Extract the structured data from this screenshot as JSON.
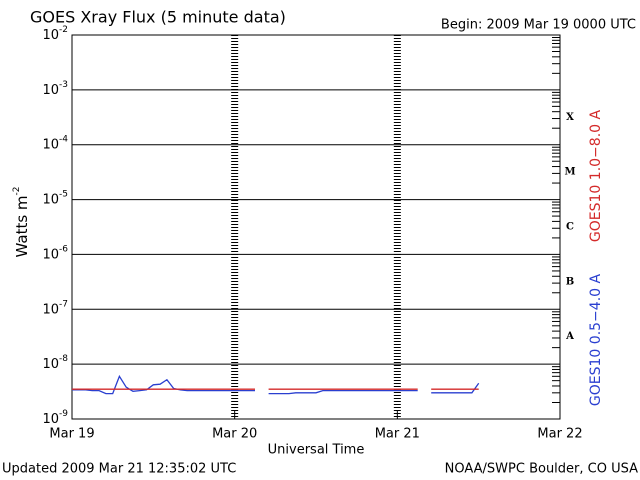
{
  "chart_data": {
    "type": "line",
    "title": "GOES Xray Flux (5 minute data)",
    "begin_label": "Begin:  2009 Mar 19 0000 UTC",
    "x_label": "Universal Time",
    "y_label": [
      "Watts m",
      "-2"
    ],
    "updated": "Updated 2009 Mar 21 12:35:02 UTC",
    "source": "NOAA/SWPC Boulder, CO USA",
    "yscale": "log",
    "grid": true,
    "xlim": [
      0,
      72
    ],
    "xticks": [
      {
        "value": 0,
        "label": "Mar 19"
      },
      {
        "value": 24,
        "label": "Mar 20"
      },
      {
        "value": 48,
        "label": "Mar 21"
      },
      {
        "value": 72,
        "label": "Mar 22"
      }
    ],
    "ylim": [
      1e-09,
      0.01
    ],
    "yticks": [
      {
        "value": 1e-09,
        "label": [
          "10",
          "-9"
        ]
      },
      {
        "value": 1e-08,
        "label": [
          "10",
          "-8"
        ]
      },
      {
        "value": 1e-07,
        "label": [
          "10",
          "-7"
        ]
      },
      {
        "value": 1e-06,
        "label": [
          "10",
          "-6"
        ]
      },
      {
        "value": 1e-05,
        "label": [
          "10",
          "-5"
        ]
      },
      {
        "value": 0.0001,
        "label": [
          "10",
          "-4"
        ]
      },
      {
        "value": 0.001,
        "label": [
          "10",
          "-3"
        ]
      },
      {
        "value": 0.01,
        "label": [
          "10",
          "-2"
        ]
      }
    ],
    "flare_classes": [
      {
        "label": "A",
        "value": 1e-08
      },
      {
        "label": "B",
        "value": 1e-07
      },
      {
        "label": "C",
        "value": 1e-06
      },
      {
        "label": "M",
        "value": 1e-05
      },
      {
        "label": "X",
        "value": 0.0001
      }
    ],
    "x": [
      0,
      1,
      2,
      3,
      4,
      5,
      6,
      7,
      8,
      9,
      10,
      11,
      12,
      13,
      14,
      15,
      16,
      17,
      18,
      19,
      20,
      21,
      22,
      23,
      24,
      25,
      26,
      27,
      28,
      29,
      30,
      31,
      32,
      33,
      34,
      35,
      36,
      37,
      38,
      39,
      40,
      41,
      42,
      43,
      44,
      45,
      46,
      47,
      48,
      49,
      50,
      51,
      52,
      53,
      54,
      55,
      56,
      57,
      58,
      59,
      60
    ],
    "series": [
      {
        "name": "GOES10 0.5−4.0 A",
        "color": "#2a3fd0",
        "values": [
          3.4e-09,
          3.4e-09,
          3.4e-09,
          3.3e-09,
          3.3e-09,
          2.9e-09,
          2.9e-09,
          6e-09,
          3.8e-09,
          3.2e-09,
          3.3e-09,
          3.4e-09,
          4.2e-09,
          4.3e-09,
          5.2e-09,
          3.6e-09,
          3.4e-09,
          3.3e-09,
          3.3e-09,
          3.3e-09,
          3.3e-09,
          3.3e-09,
          3.3e-09,
          3.3e-09,
          3.3e-09,
          3.3e-09,
          3.3e-09,
          3.3e-09,
          null,
          2.9e-09,
          2.9e-09,
          2.9e-09,
          2.9e-09,
          3e-09,
          3e-09,
          3e-09,
          3e-09,
          3.3e-09,
          3.3e-09,
          3.3e-09,
          3.3e-09,
          3.3e-09,
          3.3e-09,
          3.3e-09,
          3.3e-09,
          3.3e-09,
          3.3e-09,
          3.3e-09,
          3.3e-09,
          3.3e-09,
          3.3e-09,
          3.3e-09,
          null,
          3e-09,
          3e-09,
          3e-09,
          3e-09,
          3e-09,
          3e-09,
          3e-09,
          4.5e-09
        ]
      },
      {
        "name": "GOES10 1.0−8.0 A",
        "color": "#d42a2a",
        "values": [
          3.5e-09,
          3.5e-09,
          3.5e-09,
          3.5e-09,
          3.5e-09,
          3.5e-09,
          3.5e-09,
          3.5e-09,
          3.5e-09,
          3.5e-09,
          3.5e-09,
          3.5e-09,
          3.5e-09,
          3.5e-09,
          3.5e-09,
          3.5e-09,
          3.5e-09,
          3.5e-09,
          3.5e-09,
          3.5e-09,
          3.5e-09,
          3.5e-09,
          3.5e-09,
          3.5e-09,
          3.5e-09,
          3.5e-09,
          3.5e-09,
          3.5e-09,
          null,
          3.5e-09,
          3.5e-09,
          3.5e-09,
          3.5e-09,
          3.5e-09,
          3.5e-09,
          3.5e-09,
          3.5e-09,
          3.5e-09,
          3.5e-09,
          3.5e-09,
          3.5e-09,
          3.5e-09,
          3.5e-09,
          3.5e-09,
          3.5e-09,
          3.5e-09,
          3.5e-09,
          3.5e-09,
          3.5e-09,
          3.5e-09,
          3.5e-09,
          3.5e-09,
          null,
          3.5e-09,
          3.5e-09,
          3.5e-09,
          3.5e-09,
          3.5e-09,
          3.5e-09,
          3.5e-09,
          3.5e-09
        ]
      }
    ]
  }
}
